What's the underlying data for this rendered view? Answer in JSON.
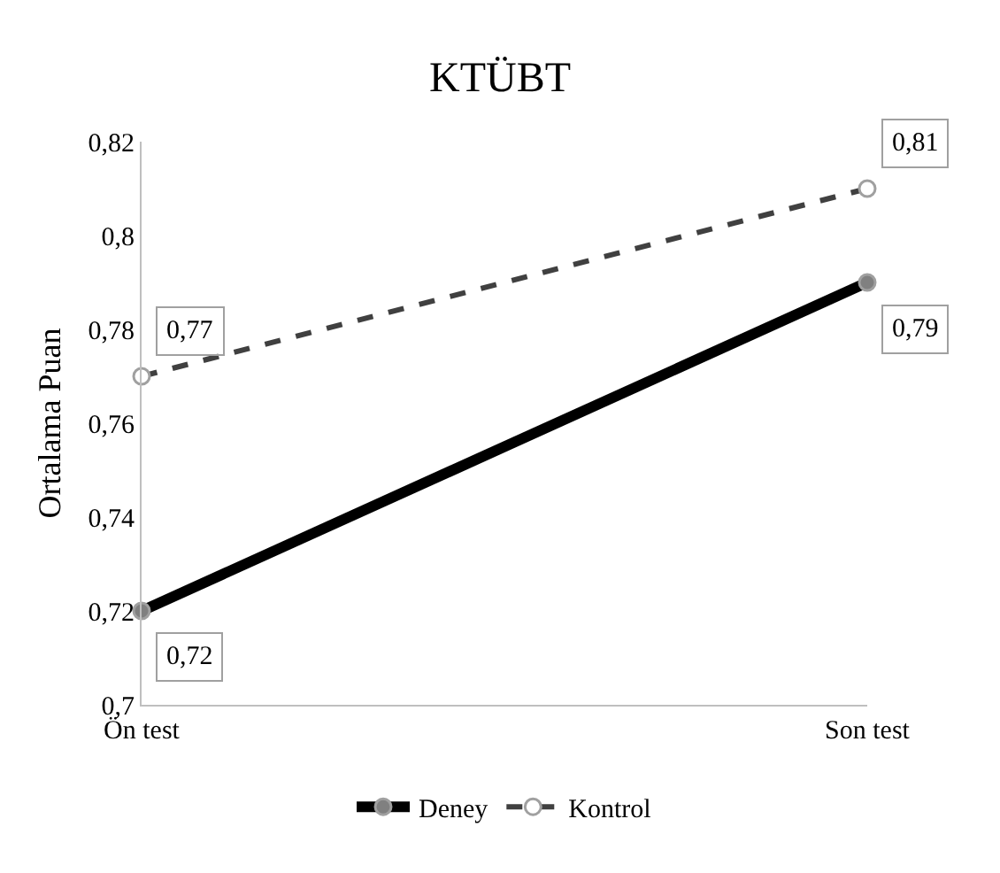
{
  "chart_data": {
    "type": "line",
    "title": "KTÜBT",
    "ylabel": "Ortalama Puan",
    "categories": [
      "Ön test",
      "Son test"
    ],
    "series": [
      {
        "name": "Deney",
        "color": "#000000",
        "line_style": "solid",
        "values": [
          0.72,
          0.79
        ],
        "value_labels": [
          "0,72",
          "0,79"
        ]
      },
      {
        "name": "Kontrol",
        "color": "#404040",
        "line_style": "dashed",
        "values": [
          0.77,
          0.81
        ],
        "value_labels": [
          "0,77",
          "0,81"
        ]
      }
    ],
    "ylim": [
      0.7,
      0.82
    ],
    "yticks": [
      {
        "value": 0.7,
        "label": "0,7"
      },
      {
        "value": 0.72,
        "label": "0,72"
      },
      {
        "value": 0.74,
        "label": "0,74"
      },
      {
        "value": 0.76,
        "label": "0,76"
      },
      {
        "value": 0.78,
        "label": "0,78"
      },
      {
        "value": 0.8,
        "label": "0,8"
      },
      {
        "value": 0.82,
        "label": "0,82"
      }
    ],
    "legend": "bottom",
    "marker": "circle"
  }
}
